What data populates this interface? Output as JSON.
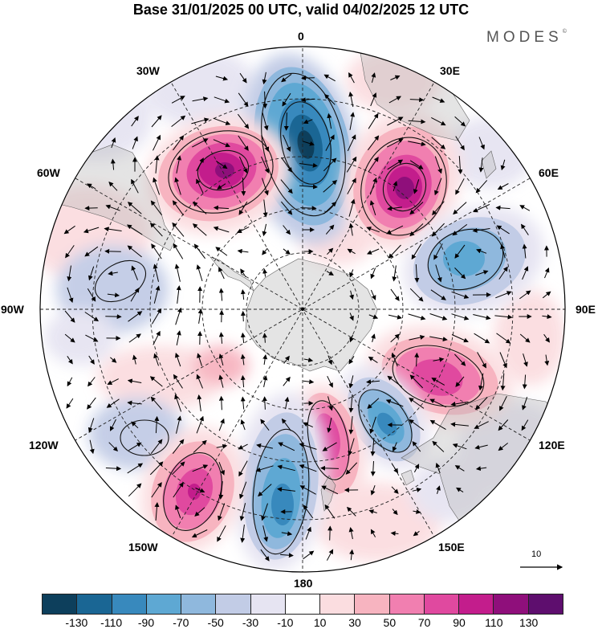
{
  "title": "Base 31/01/2025 00 UTC, valid 04/02/2025 12 UTC",
  "logo": "MODES",
  "logo_mark": "©",
  "longitude_labels": {
    "lon_0": "0",
    "lon_30e": "30E",
    "lon_60e": "60E",
    "lon_90e": "90E",
    "lon_120e": "120E",
    "lon_150e": "150E",
    "lon_180": "180",
    "lon_150w": "150W",
    "lon_120w": "120W",
    "lon_90w": "90W",
    "lon_60w": "60W",
    "lon_30w": "30W"
  },
  "colorbar": {
    "colors": [
      "#0d3f5c",
      "#1a6694",
      "#3889bd",
      "#5ea8d3",
      "#8fb8dd",
      "#c2cce6",
      "#e6e4f2",
      "#ffffff",
      "#fbdde0",
      "#f7b4c0",
      "#f17fb0",
      "#e0499f",
      "#c31d8c",
      "#8f0f7b",
      "#5e0e6e"
    ],
    "tick_labels": [
      "-130",
      "-110",
      "-90",
      "-70",
      "-50",
      "-30",
      "-10",
      "10",
      "30",
      "50",
      "70",
      "90",
      "110",
      "130"
    ]
  },
  "reference_vector_label": "10",
  "anomaly_centers": [
    {
      "lon_label": "0",
      "sign": "negative",
      "peak": -120
    },
    {
      "lon_label": "30E",
      "sign": "positive",
      "peak": 110
    },
    {
      "lon_label": "45W",
      "sign": "positive",
      "peak": 105
    },
    {
      "lon_label": "60E",
      "sign": "negative",
      "peak": -80
    },
    {
      "lon_label": "100E",
      "sign": "positive",
      "peak": 90
    },
    {
      "lon_label": "140E",
      "sign": "negative",
      "peak": -90
    },
    {
      "lon_label": "165E",
      "sign": "positive",
      "peak": 85
    },
    {
      "lon_label": "170W",
      "sign": "negative",
      "peak": -90
    },
    {
      "lon_label": "140W",
      "sign": "positive",
      "peak": 90
    }
  ]
}
